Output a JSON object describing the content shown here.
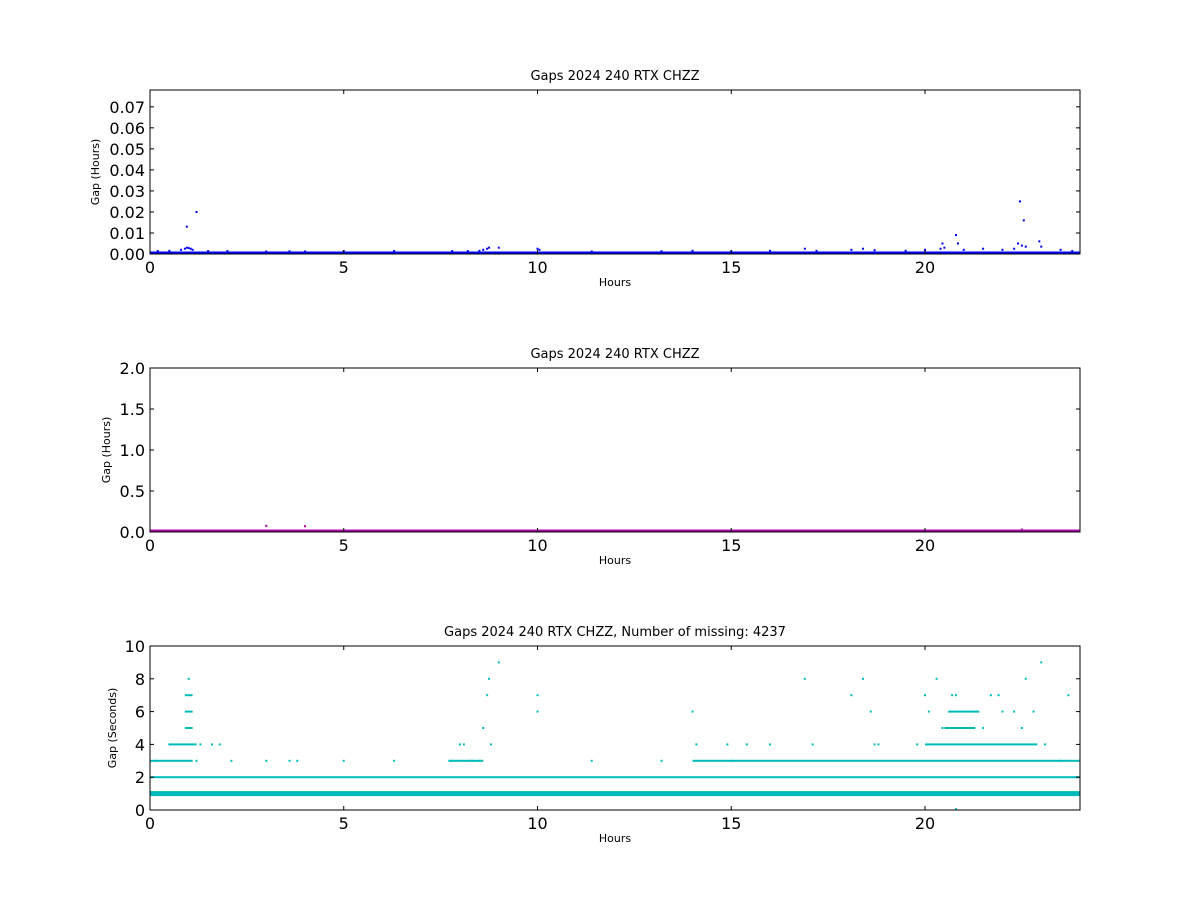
{
  "chart_data": [
    {
      "type": "scatter",
      "title": "Gaps 2024 240 RTX  CHZZ",
      "xlabel": "Hours",
      "ylabel": "Gap (Hours)",
      "xlim": [
        0,
        24
      ],
      "ylim": [
        0,
        0.078
      ],
      "x_ticks": [
        0,
        5,
        10,
        15,
        20
      ],
      "x_tick_labels": [
        "0",
        "5",
        "10",
        "15",
        "20"
      ],
      "y_ticks": [
        0,
        0.01,
        0.02,
        0.03,
        0.04,
        0.05,
        0.06,
        0.07
      ],
      "y_tick_labels": [
        "0.00",
        "0.01",
        "0.02",
        "0.03",
        "0.04",
        "0.05",
        "0.06",
        "0.07"
      ],
      "grid": false,
      "color": "#0000ff",
      "baseline_band": {
        "from": 0,
        "to": 24,
        "y_min": 0.0003,
        "y_max": 0.0012
      },
      "points": [
        [
          0.2,
          0.0014
        ],
        [
          0.5,
          0.0015
        ],
        [
          0.8,
          0.002
        ],
        [
          0.9,
          0.0025
        ],
        [
          0.95,
          0.003
        ],
        [
          1.0,
          0.0028
        ],
        [
          1.05,
          0.0025
        ],
        [
          1.1,
          0.002
        ],
        [
          0.95,
          0.013
        ],
        [
          1.2,
          0.02
        ],
        [
          1.5,
          0.0014
        ],
        [
          2.0,
          0.0014
        ],
        [
          3.0,
          0.0012
        ],
        [
          3.6,
          0.0013
        ],
        [
          4.0,
          0.0012
        ],
        [
          5.0,
          0.0014
        ],
        [
          6.3,
          0.0014
        ],
        [
          7.8,
          0.0014
        ],
        [
          8.2,
          0.0014
        ],
        [
          8.5,
          0.0015
        ],
        [
          8.6,
          0.002
        ],
        [
          8.7,
          0.0025
        ],
        [
          8.75,
          0.003
        ],
        [
          9.0,
          0.003
        ],
        [
          10.0,
          0.0025
        ],
        [
          10.05,
          0.002
        ],
        [
          11.4,
          0.0012
        ],
        [
          13.2,
          0.0013
        ],
        [
          14.0,
          0.0015
        ],
        [
          15.0,
          0.0013
        ],
        [
          16.0,
          0.0015
        ],
        [
          16.9,
          0.0025
        ],
        [
          17.2,
          0.0015
        ],
        [
          18.1,
          0.002
        ],
        [
          18.4,
          0.0025
        ],
        [
          18.7,
          0.0018
        ],
        [
          19.5,
          0.0015
        ],
        [
          20.0,
          0.002
        ],
        [
          20.4,
          0.0025
        ],
        [
          20.45,
          0.005
        ],
        [
          20.5,
          0.003
        ],
        [
          20.8,
          0.009
        ],
        [
          20.85,
          0.005
        ],
        [
          21.0,
          0.002
        ],
        [
          21.5,
          0.0025
        ],
        [
          22.0,
          0.002
        ],
        [
          22.3,
          0.0025
        ],
        [
          22.4,
          0.005
        ],
        [
          22.45,
          0.025
        ],
        [
          22.5,
          0.004
        ],
        [
          22.55,
          0.016
        ],
        [
          22.6,
          0.0035
        ],
        [
          22.95,
          0.006
        ],
        [
          23.0,
          0.0035
        ],
        [
          23.5,
          0.002
        ],
        [
          23.8,
          0.0014
        ]
      ]
    },
    {
      "type": "scatter",
      "title": "Gaps 2024 240 RTX  CHZZ",
      "xlabel": "Hours",
      "ylabel": "Gap (Hours)",
      "xlim": [
        0,
        24
      ],
      "ylim": [
        0,
        2.0
      ],
      "x_ticks": [
        0,
        5,
        10,
        15,
        20
      ],
      "x_tick_labels": [
        "0",
        "5",
        "10",
        "15",
        "20"
      ],
      "y_ticks": [
        0,
        0.5,
        1.0,
        1.5,
        2.0
      ],
      "y_tick_labels": [
        "0.0",
        "0.5",
        "1.0",
        "1.5",
        "2.0"
      ],
      "grid": false,
      "color": "#aa00aa",
      "baseline_band": {
        "from": 0,
        "to": 24,
        "y_min": 0.0,
        "y_max": 0.03
      },
      "points": [
        [
          3.0,
          0.075
        ],
        [
          4.0,
          0.07
        ],
        [
          22.5,
          0.03
        ]
      ]
    },
    {
      "type": "scatter",
      "title": "Gaps 2024 240 RTX  CHZZ, Number of missing: 4237",
      "xlabel": "Hours",
      "ylabel": "Gap (Seconds)",
      "xlim": [
        0,
        24
      ],
      "ylim": [
        0,
        10
      ],
      "x_ticks": [
        0,
        5,
        10,
        15,
        20
      ],
      "x_tick_labels": [
        "0",
        "5",
        "10",
        "15",
        "20"
      ],
      "y_ticks": [
        0,
        2,
        4,
        6,
        8,
        10
      ],
      "y_tick_labels": [
        "0",
        "2",
        "4",
        "6",
        "8",
        "10"
      ],
      "grid": false,
      "color": "#00bbbb",
      "rows": [
        {
          "y": 1,
          "segments": [
            [
              0,
              24
            ]
          ]
        },
        {
          "y": 2,
          "segments": [
            [
              0,
              24
            ]
          ]
        },
        {
          "y": 3,
          "segments": [
            [
              0,
              1.1
            ],
            [
              7.7,
              8.6
            ],
            [
              14.0,
              24
            ]
          ]
        },
        {
          "y": 4,
          "segments": [
            [
              0.5,
              1.2
            ],
            [
              20.0,
              22.9
            ]
          ]
        },
        {
          "y": 5,
          "segments": [
            [
              0.9,
              1.1
            ],
            [
              20.5,
              21.3
            ]
          ]
        },
        {
          "y": 6,
          "segments": [
            [
              0.9,
              1.1
            ],
            [
              20.6,
              21.4
            ]
          ]
        },
        {
          "y": 7,
          "segments": [
            [
              0.9,
              1.1
            ]
          ]
        }
      ],
      "points": [
        [
          0.15,
          3
        ],
        [
          0.5,
          4
        ],
        [
          1.0,
          8
        ],
        [
          1.2,
          3
        ],
        [
          1.3,
          4
        ],
        [
          1.6,
          4
        ],
        [
          1.8,
          4
        ],
        [
          2.1,
          3
        ],
        [
          3.0,
          3
        ],
        [
          3.6,
          3
        ],
        [
          3.8,
          3
        ],
        [
          5.0,
          3
        ],
        [
          6.3,
          3
        ],
        [
          7.8,
          3
        ],
        [
          8.0,
          4
        ],
        [
          8.1,
          4
        ],
        [
          8.3,
          3
        ],
        [
          8.5,
          3
        ],
        [
          8.6,
          5
        ],
        [
          8.7,
          7
        ],
        [
          8.75,
          8
        ],
        [
          8.8,
          4
        ],
        [
          9.0,
          9
        ],
        [
          10.0,
          7
        ],
        [
          10.0,
          6
        ],
        [
          11.4,
          3
        ],
        [
          13.2,
          3
        ],
        [
          14.0,
          6
        ],
        [
          14.1,
          4
        ],
        [
          14.9,
          4
        ],
        [
          15.0,
          3
        ],
        [
          15.4,
          4
        ],
        [
          16.0,
          4
        ],
        [
          16.9,
          8
        ],
        [
          17.1,
          4
        ],
        [
          18.1,
          7
        ],
        [
          18.4,
          8
        ],
        [
          18.6,
          6
        ],
        [
          18.7,
          4
        ],
        [
          18.8,
          4
        ],
        [
          19.8,
          4
        ],
        [
          20.0,
          7
        ],
        [
          20.1,
          6
        ],
        [
          20.3,
          8
        ],
        [
          20.45,
          5
        ],
        [
          20.7,
          7
        ],
        [
          20.8,
          7
        ],
        [
          20.8,
          0.05
        ],
        [
          21.3,
          6
        ],
        [
          21.5,
          5
        ],
        [
          21.7,
          7
        ],
        [
          21.9,
          7
        ],
        [
          22.0,
          6
        ],
        [
          22.3,
          6
        ],
        [
          22.5,
          5
        ],
        [
          22.6,
          8
        ],
        [
          22.8,
          6
        ],
        [
          23.0,
          9
        ],
        [
          23.1,
          4
        ],
        [
          23.5,
          3
        ],
        [
          23.7,
          7
        ]
      ]
    }
  ]
}
